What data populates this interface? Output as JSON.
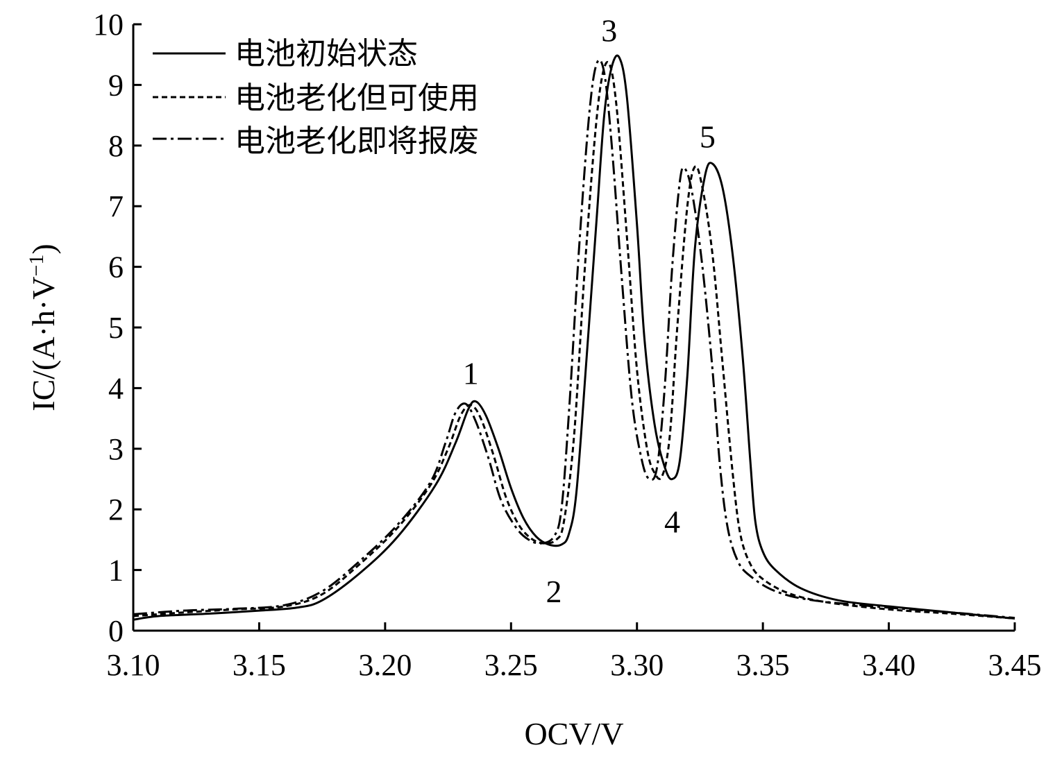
{
  "chart_data": {
    "type": "line",
    "title": "",
    "xlabel": "OCV/V",
    "ylabel_main": "IC/(A·h·V",
    "ylabel_sup": "−1",
    "ylabel_tail": ")",
    "xlim": [
      3.1,
      3.45
    ],
    "ylim": [
      0,
      10
    ],
    "xticks": [
      3.1,
      3.15,
      3.2,
      3.25,
      3.3,
      3.35,
      3.4,
      3.45
    ],
    "xtick_labels": [
      "3.10",
      "3.15",
      "3.20",
      "3.25",
      "3.30",
      "3.35",
      "3.40",
      "3.45"
    ],
    "yticks": [
      0,
      1,
      2,
      3,
      4,
      5,
      6,
      7,
      8,
      9,
      10
    ],
    "ytick_labels": [
      "0",
      "1",
      "2",
      "3",
      "4",
      "5",
      "6",
      "7",
      "8",
      "9",
      "10"
    ],
    "grid": false,
    "legend_position": "top-left",
    "series": [
      {
        "name": "电池初始状态",
        "style": "solid",
        "points": [
          [
            3.1,
            0.18
          ],
          [
            3.11,
            0.24
          ],
          [
            3.13,
            0.28
          ],
          [
            3.15,
            0.33
          ],
          [
            3.165,
            0.38
          ],
          [
            3.175,
            0.5
          ],
          [
            3.19,
            0.95
          ],
          [
            3.205,
            1.55
          ],
          [
            3.22,
            2.4
          ],
          [
            3.228,
            3.1
          ],
          [
            3.233,
            3.65
          ],
          [
            3.236,
            3.78
          ],
          [
            3.24,
            3.55
          ],
          [
            3.245,
            3.0
          ],
          [
            3.25,
            2.35
          ],
          [
            3.255,
            1.85
          ],
          [
            3.26,
            1.55
          ],
          [
            3.265,
            1.42
          ],
          [
            3.27,
            1.42
          ],
          [
            3.273,
            1.6
          ],
          [
            3.276,
            2.3
          ],
          [
            3.28,
            4.5
          ],
          [
            3.284,
            6.8
          ],
          [
            3.287,
            8.5
          ],
          [
            3.29,
            9.3
          ],
          [
            3.293,
            9.45
          ],
          [
            3.296,
            8.8
          ],
          [
            3.3,
            6.7
          ],
          [
            3.303,
            4.8
          ],
          [
            3.307,
            3.4
          ],
          [
            3.311,
            2.7
          ],
          [
            3.314,
            2.5
          ],
          [
            3.317,
            2.8
          ],
          [
            3.32,
            4.2
          ],
          [
            3.323,
            6.3
          ],
          [
            3.327,
            7.5
          ],
          [
            3.33,
            7.7
          ],
          [
            3.334,
            7.3
          ],
          [
            3.338,
            6.2
          ],
          [
            3.342,
            4.5
          ],
          [
            3.345,
            2.8
          ],
          [
            3.347,
            1.8
          ],
          [
            3.35,
            1.3
          ],
          [
            3.355,
            1.0
          ],
          [
            3.365,
            0.7
          ],
          [
            3.38,
            0.5
          ],
          [
            3.4,
            0.4
          ],
          [
            3.42,
            0.32
          ],
          [
            3.45,
            0.2
          ]
        ]
      },
      {
        "name": "电池老化但可使用",
        "style": "dashed",
        "points": [
          [
            3.1,
            0.24
          ],
          [
            3.12,
            0.3
          ],
          [
            3.14,
            0.35
          ],
          [
            3.16,
            0.4
          ],
          [
            3.175,
            0.6
          ],
          [
            3.19,
            1.1
          ],
          [
            3.205,
            1.7
          ],
          [
            3.218,
            2.4
          ],
          [
            3.225,
            3.0
          ],
          [
            3.23,
            3.55
          ],
          [
            3.234,
            3.72
          ],
          [
            3.238,
            3.5
          ],
          [
            3.243,
            2.9
          ],
          [
            3.248,
            2.2
          ],
          [
            3.253,
            1.75
          ],
          [
            3.258,
            1.52
          ],
          [
            3.263,
            1.44
          ],
          [
            3.268,
            1.5
          ],
          [
            3.271,
            1.8
          ],
          [
            3.275,
            3.2
          ],
          [
            3.279,
            5.8
          ],
          [
            3.283,
            8.0
          ],
          [
            3.286,
            9.1
          ],
          [
            3.289,
            9.35
          ],
          [
            3.292,
            8.6
          ],
          [
            3.296,
            6.5
          ],
          [
            3.3,
            4.3
          ],
          [
            3.304,
            3.0
          ],
          [
            3.307,
            2.6
          ],
          [
            3.31,
            2.55
          ],
          [
            3.313,
            3.2
          ],
          [
            3.316,
            5.0
          ],
          [
            3.32,
            7.0
          ],
          [
            3.323,
            7.65
          ],
          [
            3.326,
            7.3
          ],
          [
            3.33,
            6.2
          ],
          [
            3.334,
            4.4
          ],
          [
            3.338,
            2.6
          ],
          [
            3.341,
            1.6
          ],
          [
            3.345,
            1.1
          ],
          [
            3.35,
            0.85
          ],
          [
            3.36,
            0.62
          ],
          [
            3.375,
            0.47
          ],
          [
            3.4,
            0.35
          ],
          [
            3.425,
            0.28
          ],
          [
            3.45,
            0.2
          ]
        ]
      },
      {
        "name": "电池老化即将报废",
        "style": "dashdot",
        "points": [
          [
            3.1,
            0.27
          ],
          [
            3.12,
            0.33
          ],
          [
            3.14,
            0.36
          ],
          [
            3.16,
            0.42
          ],
          [
            3.175,
            0.65
          ],
          [
            3.19,
            1.15
          ],
          [
            3.205,
            1.75
          ],
          [
            3.218,
            2.45
          ],
          [
            3.224,
            3.1
          ],
          [
            3.228,
            3.6
          ],
          [
            3.232,
            3.74
          ],
          [
            3.236,
            3.45
          ],
          [
            3.241,
            2.85
          ],
          [
            3.246,
            2.15
          ],
          [
            3.252,
            1.7
          ],
          [
            3.257,
            1.5
          ],
          [
            3.262,
            1.44
          ],
          [
            3.267,
            1.55
          ],
          [
            3.27,
            2.0
          ],
          [
            3.273,
            3.6
          ],
          [
            3.277,
            6.3
          ],
          [
            3.281,
            8.5
          ],
          [
            3.284,
            9.35
          ],
          [
            3.287,
            9.2
          ],
          [
            3.29,
            8.0
          ],
          [
            3.294,
            5.8
          ],
          [
            3.298,
            3.8
          ],
          [
            3.302,
            2.8
          ],
          [
            3.305,
            2.5
          ],
          [
            3.308,
            2.7
          ],
          [
            3.311,
            4.0
          ],
          [
            3.314,
            6.0
          ],
          [
            3.317,
            7.4
          ],
          [
            3.319,
            7.62
          ],
          [
            3.322,
            7.2
          ],
          [
            3.326,
            6.0
          ],
          [
            3.33,
            4.3
          ],
          [
            3.333,
            2.7
          ],
          [
            3.336,
            1.7
          ],
          [
            3.34,
            1.15
          ],
          [
            3.345,
            0.9
          ],
          [
            3.355,
            0.65
          ],
          [
            3.37,
            0.5
          ],
          [
            3.4,
            0.38
          ],
          [
            3.425,
            0.3
          ],
          [
            3.45,
            0.21
          ]
        ]
      }
    ],
    "annotations": [
      {
        "text": "1",
        "x": 3.234,
        "y": 4.25
      },
      {
        "text": "2",
        "x": 3.267,
        "y": 0.65
      },
      {
        "text": "3",
        "x": 3.289,
        "y": 9.9
      },
      {
        "text": "4",
        "x": 3.314,
        "y": 1.8
      },
      {
        "text": "5",
        "x": 3.328,
        "y": 8.15
      }
    ]
  }
}
